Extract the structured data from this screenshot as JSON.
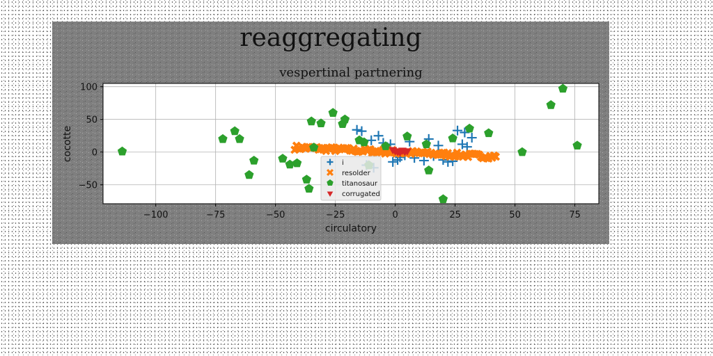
{
  "chart_data": {
    "type": "scatter",
    "title": "reaggregating",
    "subtitle": "vespertinal partnering",
    "xlabel": "circulatory",
    "ylabel": "cocotte",
    "xlim": [
      -122,
      85
    ],
    "ylim": [
      -79,
      105
    ],
    "xticks": [
      -100,
      -75,
      -50,
      -25,
      0,
      25,
      50,
      75
    ],
    "yticks": [
      -50,
      0,
      50,
      100
    ],
    "grid": true,
    "legend_position": "center",
    "series": [
      {
        "name": "i",
        "marker": "plus",
        "color": "#1f77b4",
        "points": [
          [
            -16,
            34
          ],
          [
            -14,
            32
          ],
          [
            -10,
            18
          ],
          [
            -7,
            25
          ],
          [
            -5,
            14
          ],
          [
            -2,
            12
          ],
          [
            -1,
            -15
          ],
          [
            1,
            -12
          ],
          [
            2,
            -8
          ],
          [
            4,
            -5
          ],
          [
            6,
            16
          ],
          [
            8,
            -9
          ],
          [
            12,
            -13
          ],
          [
            14,
            20
          ],
          [
            16,
            -6
          ],
          [
            18,
            10
          ],
          [
            20,
            -12
          ],
          [
            22,
            -15
          ],
          [
            24,
            -14
          ],
          [
            26,
            33
          ],
          [
            28,
            12
          ],
          [
            29,
            30
          ],
          [
            30,
            8
          ],
          [
            32,
            22
          ],
          [
            -12,
            -20
          ],
          [
            -9,
            -24
          ]
        ]
      },
      {
        "name": "resolder",
        "marker": "X",
        "color": "#ff7f0e",
        "x_range": [
          -42,
          42
        ],
        "y_at_start": 7,
        "y_at_end": -7,
        "band_width": 7,
        "count": 110
      },
      {
        "name": "titanosaur",
        "marker": "pentagon",
        "color": "#2ca02c",
        "points": [
          [
            -114,
            1
          ],
          [
            -72,
            20
          ],
          [
            -67,
            32
          ],
          [
            -65,
            20
          ],
          [
            -61,
            -35
          ],
          [
            -59,
            -13
          ],
          [
            -47,
            -10
          ],
          [
            -44,
            -19
          ],
          [
            -41,
            -17
          ],
          [
            -37,
            -42
          ],
          [
            -36,
            -56
          ],
          [
            -35,
            47
          ],
          [
            -34,
            7
          ],
          [
            -31,
            44
          ],
          [
            -26,
            60
          ],
          [
            -22,
            43
          ],
          [
            -21,
            50
          ],
          [
            -15,
            18
          ],
          [
            -13,
            15
          ],
          [
            -11,
            -20
          ],
          [
            -4,
            9
          ],
          [
            5,
            24
          ],
          [
            13,
            12
          ],
          [
            14,
            -28
          ],
          [
            20,
            -72
          ],
          [
            24,
            21
          ],
          [
            31,
            36
          ],
          [
            39,
            29
          ],
          [
            53,
            0
          ],
          [
            65,
            72
          ],
          [
            70,
            97
          ],
          [
            76,
            10
          ]
        ]
      },
      {
        "name": "corrugated",
        "marker": "triangle-down",
        "color": "#d62728",
        "points": [
          [
            -1,
            4
          ],
          [
            0,
            2
          ],
          [
            1,
            1
          ],
          [
            2,
            0
          ],
          [
            3,
            3
          ],
          [
            4,
            1
          ],
          [
            5,
            2
          ]
        ]
      }
    ]
  }
}
